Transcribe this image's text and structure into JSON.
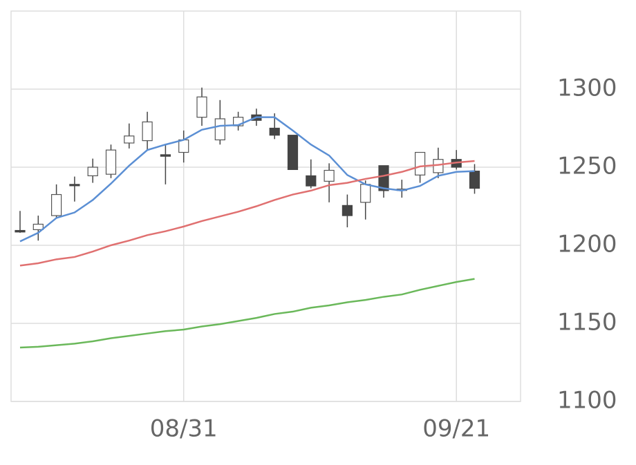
{
  "chart_data": {
    "type": "candlestick",
    "categories": [
      null,
      null,
      null,
      null,
      null,
      null,
      null,
      null,
      null,
      "08/31",
      null,
      null,
      null,
      null,
      null,
      null,
      null,
      null,
      null,
      null,
      null,
      null,
      null,
      null,
      "09/21",
      null
    ],
    "open": [
      1209.5,
      1210,
      1219,
      1239,
      1244.5,
      1245.5,
      1265.5,
      1267,
      1258,
      1259.5,
      1282,
      1267.5,
      1276.5,
      1283.5,
      1275,
      1270.5,
      1244.5,
      1241,
      1225.5,
      1227.5,
      1251,
      1235.5,
      1245,
      1246.5,
      1255,
      1247.5
    ],
    "high": [
      1222,
      1219,
      1239,
      1244,
      1255.5,
      1264.5,
      1278,
      1285.5,
      1264.5,
      1273.5,
      1301,
      1293,
      1285.5,
      1287.5,
      1284.5,
      1270.5,
      1255,
      1252.5,
      1232.5,
      1241.5,
      1251,
      1242,
      1259.5,
      1262.5,
      1261,
      1252
    ],
    "low": [
      1208,
      1203,
      1217.5,
      1228,
      1240,
      1243,
      1262,
      1261,
      1239,
      1253,
      1276.5,
      1264.5,
      1273.5,
      1276.5,
      1268,
      1248.5,
      1236.5,
      1227.5,
      1211.5,
      1216.5,
      1230.5,
      1230.5,
      1240,
      1243,
      1248.5,
      1233
    ],
    "close": [
      1208.5,
      1213.5,
      1232.5,
      1239,
      1250,
      1261,
      1270,
      1279,
      1257,
      1267.5,
      1295,
      1281,
      1282,
      1280,
      1270.5,
      1248.5,
      1238,
      1248,
      1219,
      1239,
      1235,
      1236,
      1259.5,
      1255,
      1250,
      1236.5
    ],
    "up_color": "#ffffff",
    "down_color": "#444444",
    "lines": [
      {
        "color": "#5b8fd4",
        "values": [
          1202.5,
          1208,
          1217.5,
          1221,
          1229,
          1239.5,
          1251,
          1261,
          1264.5,
          1267.5,
          1274,
          1276.5,
          1277,
          1282,
          1282,
          1273.5,
          1264.5,
          1257.5,
          1245,
          1239,
          1236.5,
          1235,
          1238,
          1244.5,
          1247,
          1247.5
        ]
      },
      {
        "color": "#e07070",
        "values": [
          1187,
          1188.5,
          1191,
          1192.5,
          1196,
          1200,
          1203,
          1206.5,
          1209,
          1212,
          1215.5,
          1218.5,
          1221.5,
          1225,
          1229,
          1232.5,
          1235,
          1238.5,
          1240,
          1242.5,
          1244.5,
          1247,
          1250.5,
          1251.5,
          1253,
          1254
        ]
      },
      {
        "color": "#6ab85a",
        "values": [
          1134.5,
          1135,
          1136,
          1137,
          1138.5,
          1140.5,
          1142,
          1143.5,
          1145,
          1146,
          1148,
          1149.5,
          1151.5,
          1153.5,
          1156,
          1157.5,
          1160,
          1161.5,
          1163.5,
          1165,
          1167,
          1168.5,
          1171.5,
          1174,
          1176.5,
          1178.5
        ]
      }
    ],
    "ylim": [
      1100,
      1350
    ],
    "yticks": [
      1100,
      1150,
      1200,
      1250,
      1300
    ],
    "grid": true,
    "y_axis_side": "right"
  }
}
